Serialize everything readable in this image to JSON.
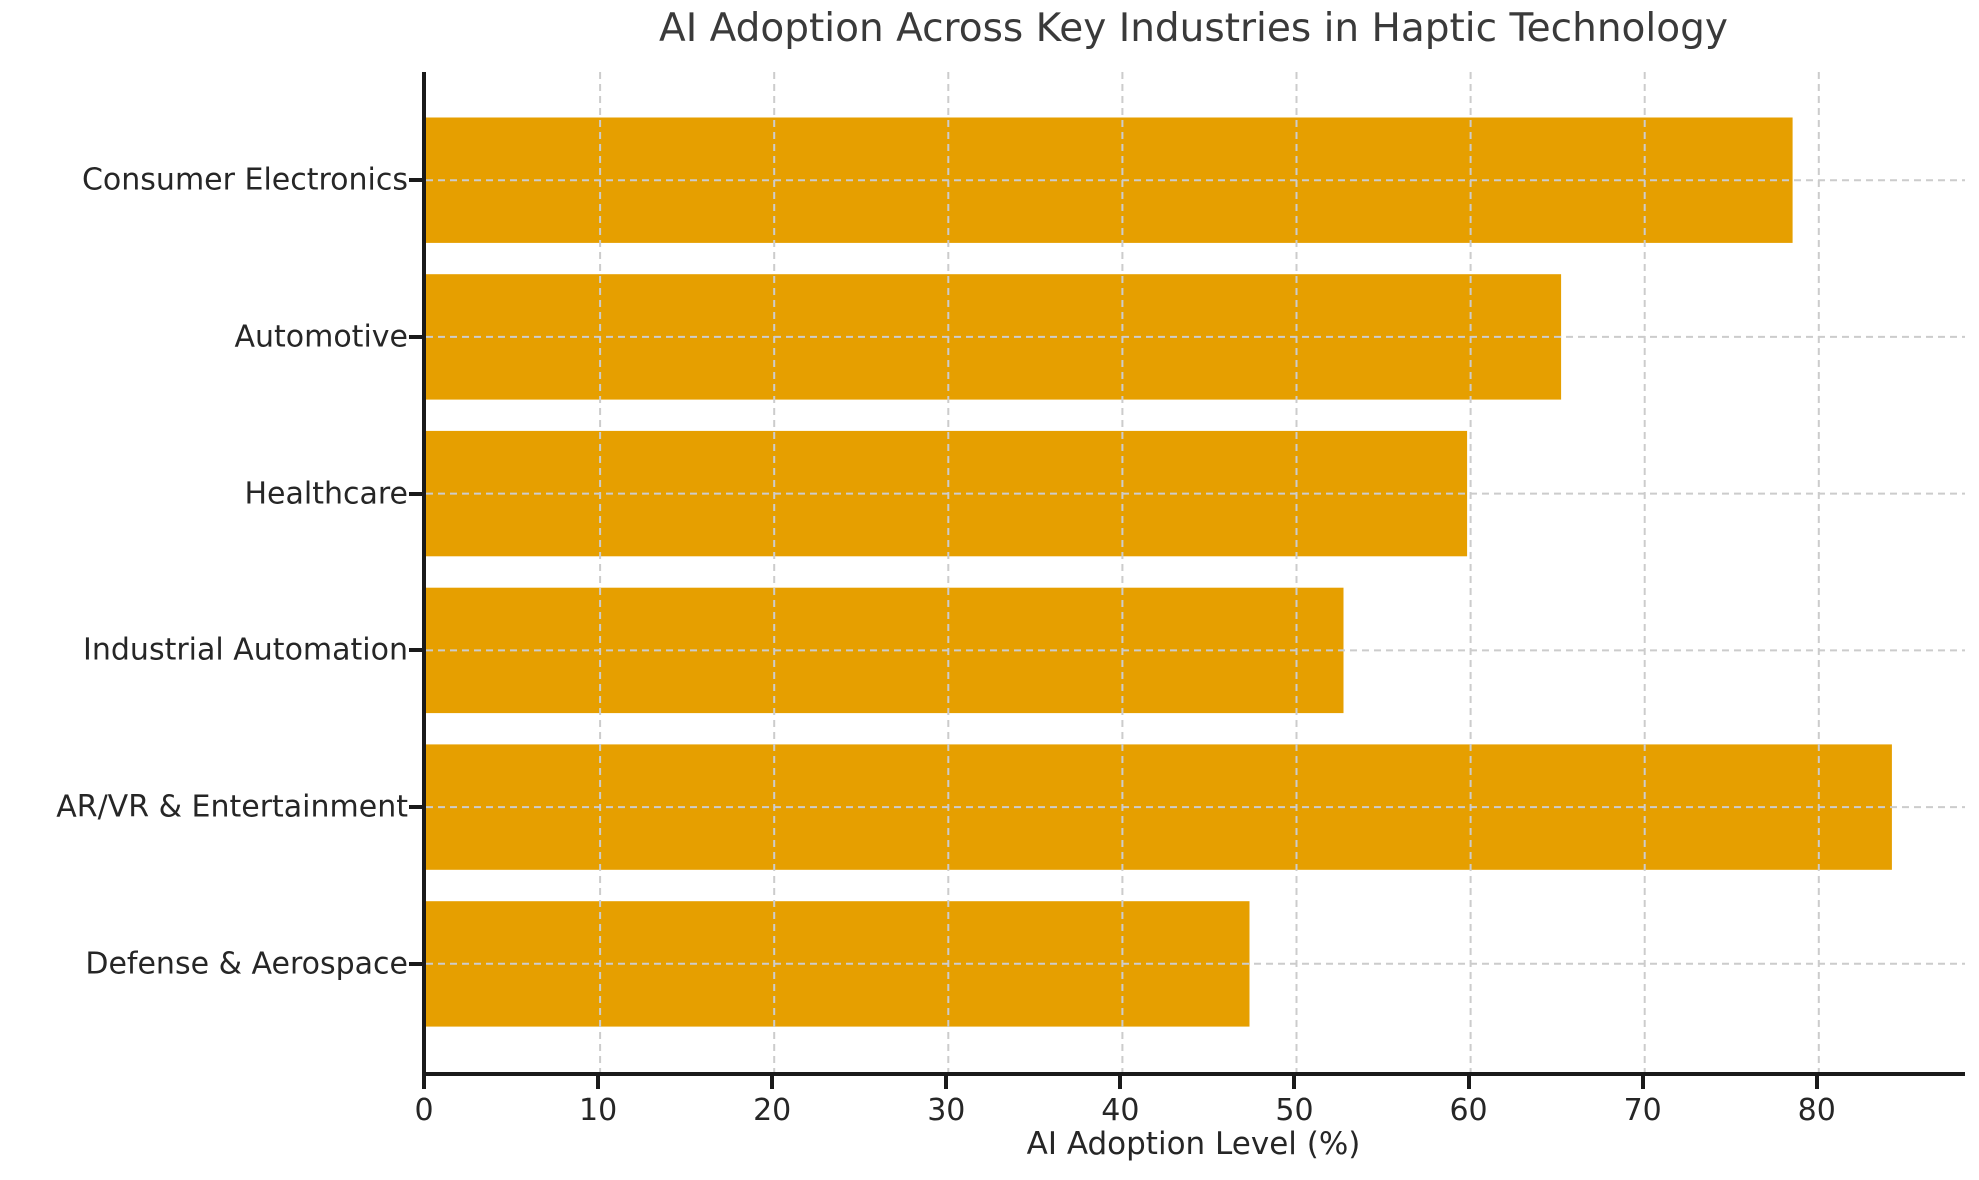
{
  "chart_data": {
    "type": "bar",
    "orientation": "horizontal",
    "title": "AI Adoption Across Key Industries in Haptic Technology",
    "xlabel": "AI Adoption Level (%)",
    "ylabel": "",
    "categories": [
      "Consumer Electronics",
      "Automotive",
      "Healthcare",
      "Industrial Automation",
      "AR/VR & Entertainment",
      "Defense & Aerospace"
    ],
    "values": [
      78.5,
      65.2,
      59.8,
      52.7,
      84.2,
      47.3
    ],
    "xticks": [
      0,
      10,
      20,
      30,
      40,
      50,
      60,
      70,
      80
    ],
    "xlim": [
      0,
      88.4
    ],
    "grid": {
      "visible": true,
      "style": "dashed",
      "color": "#cccccc",
      "axes": "both",
      "above_bars": true
    },
    "legend": null,
    "colors": {
      "bar": "#E69F00",
      "grid": "#cccccc",
      "spine": "#1a1a1a",
      "text": "#262626",
      "title": "#3a3a3a",
      "background": "#ffffff"
    }
  }
}
